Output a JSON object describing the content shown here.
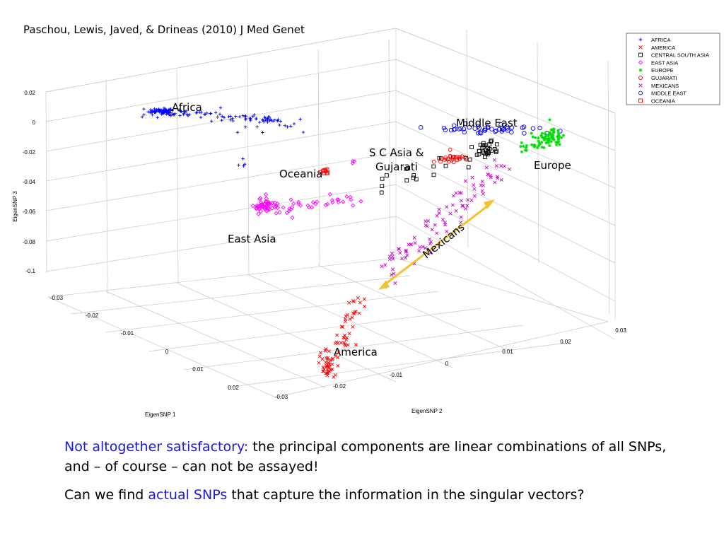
{
  "citation": "Paschou, Lewis, Javed, & Drineas (2010) J Med Genet",
  "chart_data": {
    "type": "scatter",
    "projection": "3d",
    "grid": true,
    "legend_position": "top-right",
    "axes": {
      "x": {
        "label": "EigenSNP 1",
        "ticks": [
          "-0.03",
          "-0.02",
          "-0.01",
          "0",
          "0.01",
          "0.02"
        ]
      },
      "y": {
        "label": "EigenSNP 2",
        "ticks": [
          "-0.03",
          "-0.02",
          "-0.01",
          "0",
          "0.01",
          "0.02",
          "0.03"
        ]
      },
      "z": {
        "label": "EigenSNP 3",
        "ticks": [
          "0.02",
          "0",
          "-0.02",
          "-0.04",
          "-0.06",
          "-0.08",
          "-0.1"
        ]
      }
    },
    "legend": [
      {
        "name": "AFRICA",
        "marker": "plus",
        "color": "#0000ff"
      },
      {
        "name": "AMERICA",
        "marker": "x",
        "color": "#ff0000"
      },
      {
        "name": "CENTRAL SOUTH ASIA",
        "marker": "square",
        "color": "#000000"
      },
      {
        "name": "EAST ASIA",
        "marker": "diamond",
        "color": "#ff00ff"
      },
      {
        "name": "EUROPE",
        "marker": "star",
        "color": "#00dd00"
      },
      {
        "name": "GUJARATI",
        "marker": "circle",
        "color": "#ff0000"
      },
      {
        "name": "MEXICANS",
        "marker": "x",
        "color": "#cc00cc"
      },
      {
        "name": "MIDDLE EAST",
        "marker": "circle",
        "color": "#0000ff"
      },
      {
        "name": "OCEANIA",
        "marker": "square",
        "color": "#ff0000"
      }
    ],
    "annotations": {
      "africa": "Africa",
      "middle_east": "Middle East",
      "sc_asia_1": "S C Asia &",
      "sc_asia_2": "Gujarati",
      "oceania": "Oceania",
      "europe": "Europe",
      "east_asia": "East Asia",
      "mexicans": "Mexicans",
      "america": "America"
    },
    "arrow_color": "#f2c230"
  },
  "caption": {
    "lead": "Not altogether satisfactory:",
    "line1_rest": " the principal components are linear combinations of all SNPs, and – of course – can not be assayed!",
    "line2_start": "Can we find ",
    "line2_highlight": "actual SNPs",
    "line2_end": " that capture the information in the singular vectors?"
  }
}
